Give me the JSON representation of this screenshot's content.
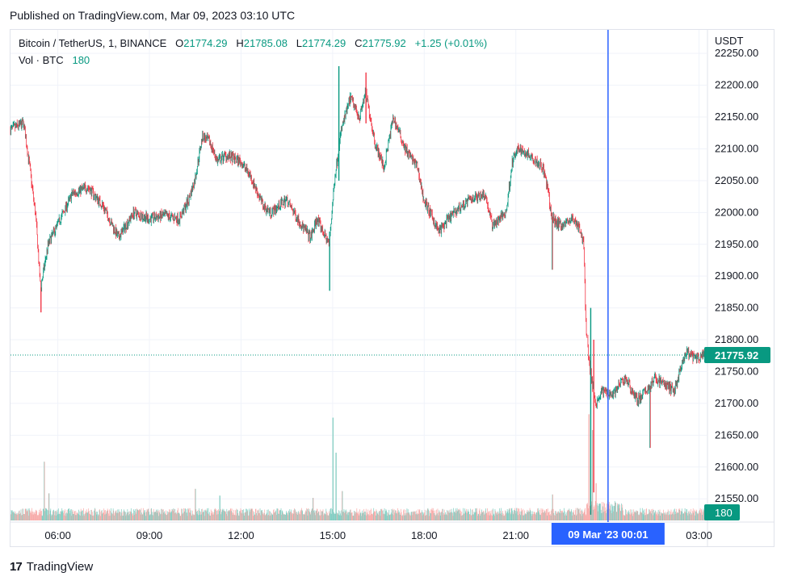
{
  "header": {
    "published": "Published on TradingView.com, Mar 09, 2023 03:10 UTC"
  },
  "legend": {
    "symbol": "Bitcoin / TetherUS, 1, BINANCE",
    "o_label": "O",
    "o_value": "21774.29",
    "h_label": "H",
    "h_value": "21785.08",
    "l_label": "L",
    "l_value": "21774.29",
    "c_label": "C",
    "c_value": "21775.92",
    "change": "+1.25 (+0.01%)",
    "vol_label": "Vol · BTC",
    "vol_value": "180"
  },
  "footer": {
    "brand": "TradingView",
    "logo": "17"
  },
  "colors": {
    "up": "#089981",
    "down": "#f23645",
    "up_vol": "#7fccc0",
    "down_vol": "#f7a9a7",
    "grid": "#f0f3fa",
    "crosshair": "#2962ff",
    "text": "#131722"
  },
  "chart_data": {
    "type": "candlestick",
    "title": "Bitcoin / TetherUS, 1, BINANCE",
    "currency_label": "USDT",
    "yticks": [
      "22250.00",
      "22200.00",
      "22150.00",
      "22100.00",
      "22050.00",
      "22000.00",
      "21950.00",
      "21900.00",
      "21850.00",
      "21800.00",
      "21750.00",
      "21700.00",
      "21650.00",
      "21600.00",
      "21550.00"
    ],
    "ylim": [
      21516,
      22287
    ],
    "xticks": [
      {
        "label": "06:00",
        "hour": 6
      },
      {
        "label": "09:00",
        "hour": 9
      },
      {
        "label": "12:00",
        "hour": 12
      },
      {
        "label": "15:00",
        "hour": 15
      },
      {
        "label": "18:00",
        "hour": 18
      },
      {
        "label": "21:00",
        "hour": 21
      },
      {
        "label": "03:00",
        "hour": 27
      }
    ],
    "xlim_hours": [
      4.45,
      27.25
    ],
    "last_price": {
      "value": 21775.92,
      "label": "21775.92"
    },
    "last_volume": {
      "value": 180,
      "label": "180"
    },
    "crosshair": {
      "hour": 24.02,
      "label": "09 Mar '23   00:01"
    },
    "price_path": [
      {
        "h": 4.45,
        "p": 22130
      },
      {
        "h": 4.9,
        "p": 22140
      },
      {
        "h": 5.1,
        "p": 22070
      },
      {
        "h": 5.3,
        "p": 21990
      },
      {
        "h": 5.45,
        "p": 21880
      },
      {
        "h": 5.7,
        "p": 21950
      },
      {
        "h": 6.0,
        "p": 21980
      },
      {
        "h": 6.5,
        "p": 22030
      },
      {
        "h": 7.0,
        "p": 22040
      },
      {
        "h": 7.5,
        "p": 22010
      },
      {
        "h": 8.0,
        "p": 21960
      },
      {
        "h": 8.5,
        "p": 22000
      },
      {
        "h": 9.0,
        "p": 21990
      },
      {
        "h": 9.5,
        "p": 21995
      },
      {
        "h": 10.0,
        "p": 21990
      },
      {
        "h": 10.3,
        "p": 22020
      },
      {
        "h": 10.5,
        "p": 22050
      },
      {
        "h": 10.75,
        "p": 22120
      },
      {
        "h": 11.0,
        "p": 22110
      },
      {
        "h": 11.25,
        "p": 22080
      },
      {
        "h": 11.5,
        "p": 22090
      },
      {
        "h": 12.0,
        "p": 22080
      },
      {
        "h": 12.3,
        "p": 22060
      },
      {
        "h": 12.75,
        "p": 22010
      },
      {
        "h": 13.0,
        "p": 22000
      },
      {
        "h": 13.5,
        "p": 22020
      },
      {
        "h": 14.0,
        "p": 21980
      },
      {
        "h": 14.3,
        "p": 21960
      },
      {
        "h": 14.5,
        "p": 21990
      },
      {
        "h": 14.9,
        "p": 21950
      },
      {
        "h": 15.1,
        "p": 22060
      },
      {
        "h": 15.3,
        "p": 22130
      },
      {
        "h": 15.6,
        "p": 22180
      },
      {
        "h": 15.9,
        "p": 22150
      },
      {
        "h": 16.1,
        "p": 22190
      },
      {
        "h": 16.4,
        "p": 22110
      },
      {
        "h": 16.7,
        "p": 22070
      },
      {
        "h": 17.0,
        "p": 22150
      },
      {
        "h": 17.4,
        "p": 22100
      },
      {
        "h": 17.8,
        "p": 22070
      },
      {
        "h": 18.0,
        "p": 22020
      },
      {
        "h": 18.5,
        "p": 21970
      },
      {
        "h": 19.0,
        "p": 22000
      },
      {
        "h": 19.5,
        "p": 22020
      },
      {
        "h": 20.0,
        "p": 22030
      },
      {
        "h": 20.25,
        "p": 21980
      },
      {
        "h": 20.7,
        "p": 22000
      },
      {
        "h": 20.9,
        "p": 22080
      },
      {
        "h": 21.1,
        "p": 22100
      },
      {
        "h": 21.5,
        "p": 22090
      },
      {
        "h": 21.9,
        "p": 22070
      },
      {
        "h": 22.05,
        "p": 22040
      },
      {
        "h": 22.2,
        "p": 21990
      },
      {
        "h": 22.5,
        "p": 21980
      },
      {
        "h": 22.9,
        "p": 21990
      },
      {
        "h": 23.05,
        "p": 21980
      },
      {
        "h": 23.25,
        "p": 21950
      },
      {
        "h": 23.3,
        "p": 21830
      },
      {
        "h": 23.45,
        "p": 21750
      },
      {
        "h": 23.65,
        "p": 21700
      },
      {
        "h": 23.85,
        "p": 21720
      },
      {
        "h": 24.2,
        "p": 21715
      },
      {
        "h": 24.6,
        "p": 21740
      },
      {
        "h": 25.0,
        "p": 21705
      },
      {
        "h": 25.3,
        "p": 21720
      },
      {
        "h": 25.6,
        "p": 21740
      },
      {
        "h": 25.9,
        "p": 21730
      },
      {
        "h": 26.2,
        "p": 21720
      },
      {
        "h": 26.6,
        "p": 21780
      },
      {
        "h": 26.9,
        "p": 21770
      },
      {
        "h": 27.25,
        "p": 21776
      }
    ],
    "price_spikes": [
      {
        "h": 5.45,
        "hi": 21870,
        "lo": 21843
      },
      {
        "h": 14.9,
        "hi": 21970,
        "lo": 21877
      },
      {
        "h": 15.2,
        "hi": 22230,
        "lo": 22050
      },
      {
        "h": 16.1,
        "hi": 22220,
        "lo": 22140
      },
      {
        "h": 22.2,
        "hi": 22000,
        "lo": 21910
      },
      {
        "h": 23.45,
        "hi": 21850,
        "lo": 21525
      },
      {
        "h": 23.55,
        "hi": 21800,
        "lo": 21560
      },
      {
        "h": 25.4,
        "hi": 21700,
        "lo": 21630
      }
    ],
    "volume_scale_max": 1000,
    "volume_spikes": [
      {
        "h": 5.55,
        "v": 520
      },
      {
        "h": 5.7,
        "v": 240
      },
      {
        "h": 10.5,
        "v": 280
      },
      {
        "h": 11.3,
        "v": 220
      },
      {
        "h": 14.35,
        "v": 200
      },
      {
        "h": 15.0,
        "v": 910
      },
      {
        "h": 15.1,
        "v": 600
      },
      {
        "h": 15.3,
        "v": 260
      },
      {
        "h": 22.2,
        "v": 230
      },
      {
        "h": 23.38,
        "v": 940
      },
      {
        "h": 23.5,
        "v": 800
      },
      {
        "h": 23.62,
        "v": 330
      }
    ]
  }
}
